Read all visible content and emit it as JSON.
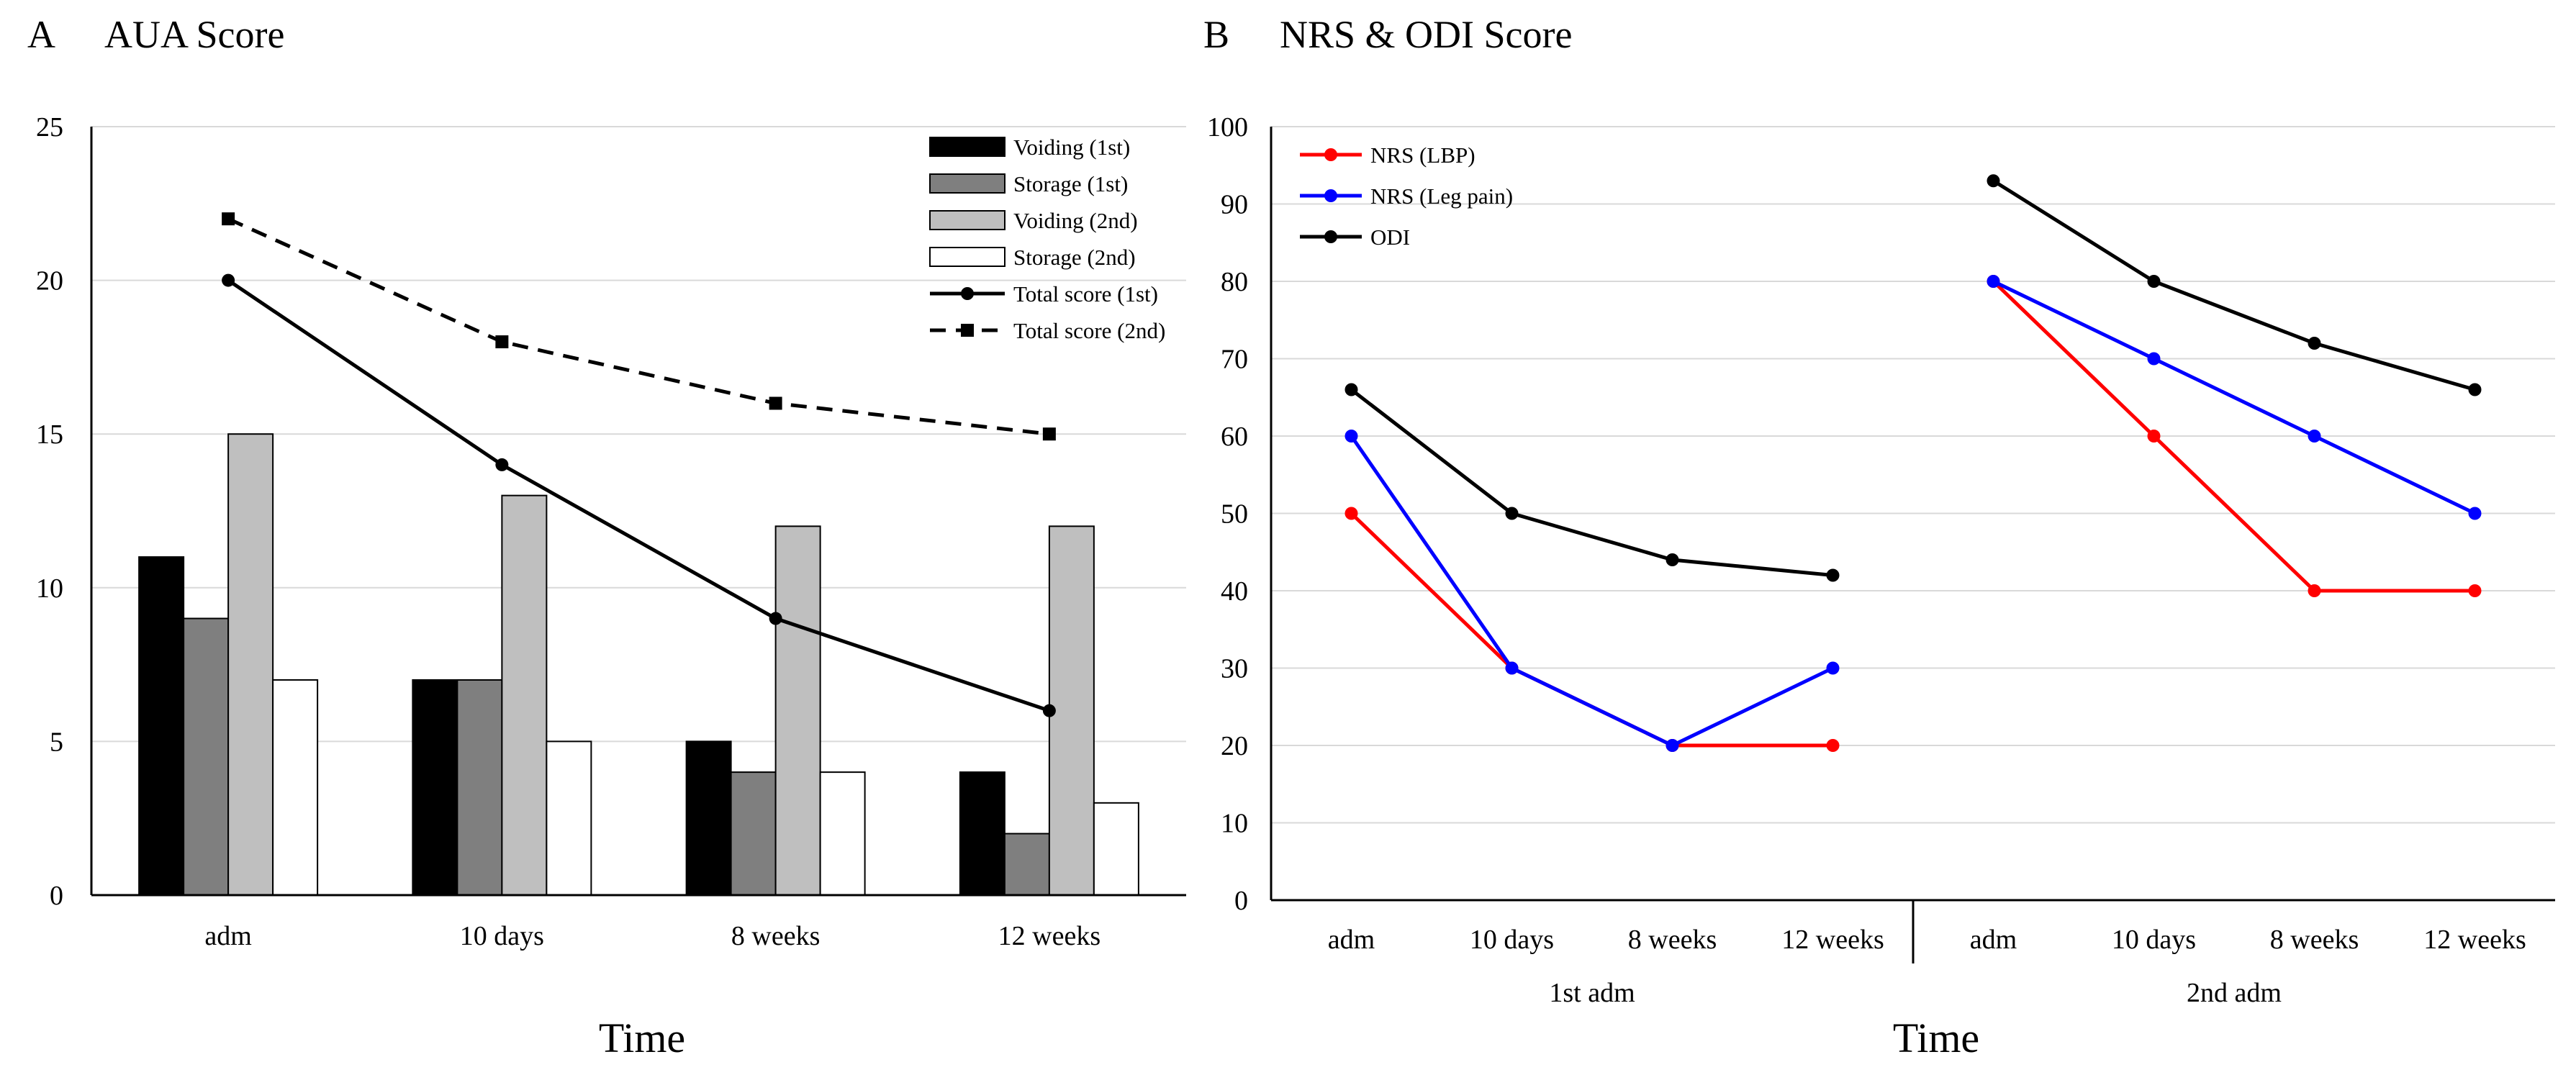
{
  "chart_data": [
    {
      "panel": "A",
      "type": "bar",
      "title": "AUA Score",
      "xlabel": "Time",
      "ylabel": "",
      "ylim": [
        0,
        25
      ],
      "yticks": [
        0,
        5,
        10,
        15,
        20,
        25
      ],
      "grid": true,
      "legend_position": "top-right",
      "categories": [
        "adm",
        "10 days",
        "8 weeks",
        "12 weeks"
      ],
      "series": [
        {
          "name": "Voiding (1st)",
          "kind": "bar",
          "color": "#000000",
          "values": [
            11,
            7,
            5,
            4
          ]
        },
        {
          "name": "Storage (1st)",
          "kind": "bar",
          "color": "#7f7f7f",
          "values": [
            9,
            7,
            4,
            2
          ]
        },
        {
          "name": "Voiding (2nd)",
          "kind": "bar",
          "color": "#bfbfbf",
          "values": [
            15,
            13,
            12,
            12
          ]
        },
        {
          "name": "Storage (2nd)",
          "kind": "bar",
          "color": "#ffffff",
          "values": [
            7,
            5,
            4,
            3
          ]
        },
        {
          "name": "Total score (1st)",
          "kind": "line",
          "color": "#000000",
          "dash": false,
          "marker": "circle",
          "values": [
            20,
            14,
            9,
            6
          ]
        },
        {
          "name": "Total score (2nd)",
          "kind": "line",
          "color": "#000000",
          "dash": true,
          "marker": "square",
          "values": [
            22,
            18,
            16,
            15
          ]
        }
      ]
    },
    {
      "panel": "B",
      "type": "line",
      "title": "NRS & ODI Score",
      "xlabel": "Time",
      "ylabel": "",
      "ylim": [
        0,
        100
      ],
      "yticks": [
        0,
        10,
        20,
        30,
        40,
        50,
        60,
        70,
        80,
        90,
        100
      ],
      "grid": true,
      "legend_position": "top-left",
      "groups": [
        {
          "label": "1st adm",
          "categories": [
            "adm",
            "10 days",
            "8 weeks",
            "12 weeks"
          ]
        },
        {
          "label": "2nd adm",
          "categories": [
            "adm",
            "10 days",
            "8 weeks",
            "12 weeks"
          ]
        }
      ],
      "series": [
        {
          "name": "NRS (LBP)",
          "color": "#ff0000",
          "values": [
            [
              50,
              30,
              20,
              20
            ],
            [
              80,
              60,
              40,
              40
            ]
          ]
        },
        {
          "name": "NRS (Leg pain)",
          "color": "#0000ff",
          "values": [
            [
              60,
              30,
              20,
              30
            ],
            [
              80,
              70,
              60,
              50
            ]
          ]
        },
        {
          "name": "ODI",
          "color": "#000000",
          "values": [
            [
              66,
              50,
              44,
              42
            ],
            [
              93,
              80,
              72,
              66
            ]
          ]
        }
      ]
    }
  ]
}
